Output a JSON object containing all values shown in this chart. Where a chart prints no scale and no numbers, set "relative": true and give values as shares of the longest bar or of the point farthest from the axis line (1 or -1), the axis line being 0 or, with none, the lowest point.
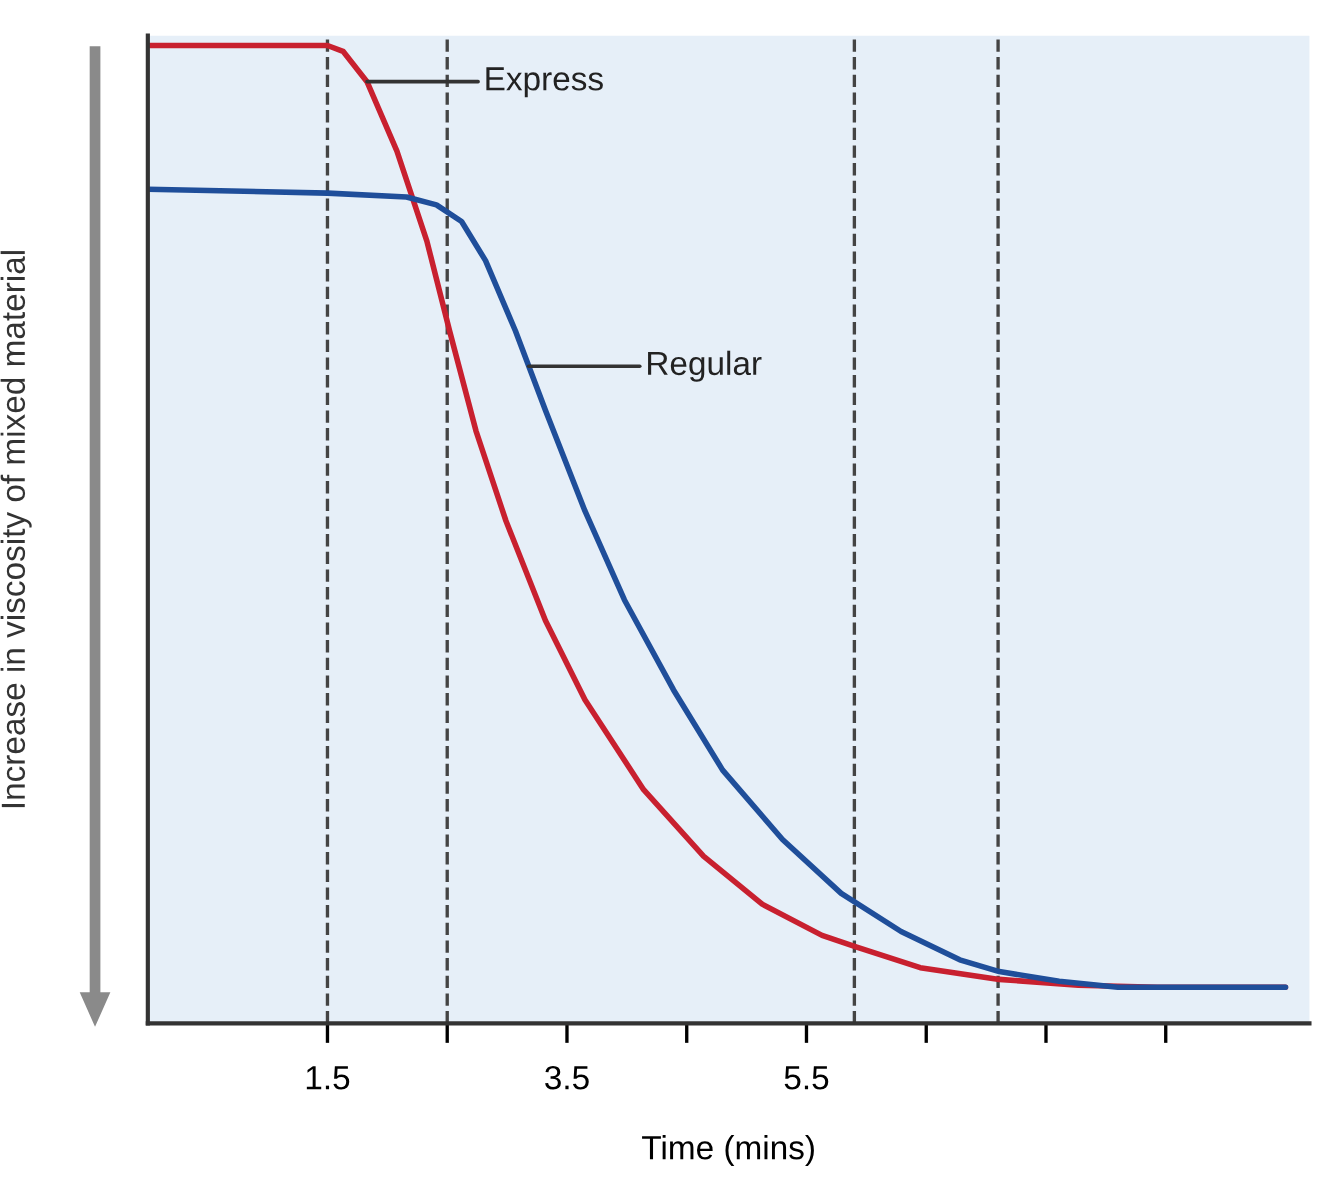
{
  "chart_data": {
    "type": "line",
    "relative": true,
    "xlabel": "Time (mins)",
    "ylabel": "Increase in viscosity of mixed material",
    "xlim": [
      0,
      9.7
    ],
    "xticks": [
      1.5,
      {
        "value": 2.5,
        "label": null
      },
      3.5,
      {
        "value": 4.5,
        "label": null
      },
      5.5,
      {
        "value": 6.5,
        "label": null
      },
      {
        "value": 7.5,
        "label": null
      },
      {
        "value": 8.5,
        "label": null
      }
    ],
    "series": [
      {
        "color": "#c8202f",
        "x": [
          0,
          1.5,
          1.63,
          1.83,
          2.08,
          2.33,
          2.52,
          2.74,
          2.99,
          3.32,
          3.65,
          4.14,
          4.64,
          5.13,
          5.63,
          5.92,
          6.45,
          7.11,
          7.77,
          8.43,
          9.5
        ],
        "values": [
          1.0,
          1.0,
          0.994,
          0.963,
          0.892,
          0.8,
          0.708,
          0.606,
          0.514,
          0.412,
          0.331,
          0.239,
          0.171,
          0.122,
          0.09,
          0.078,
          0.057,
          0.045,
          0.039,
          0.037,
          0.037
        ]
      },
      {
        "color": "#1f4e9a",
        "x": [
          0,
          1.5,
          2.16,
          2.41,
          2.62,
          2.82,
          3.07,
          3.32,
          3.65,
          3.98,
          4.39,
          4.8,
          5.3,
          5.79,
          6.29,
          6.78,
          7.11,
          7.61,
          8.1,
          9.5
        ],
        "values": [
          0.853,
          0.849,
          0.845,
          0.837,
          0.82,
          0.78,
          0.708,
          0.627,
          0.524,
          0.433,
          0.341,
          0.259,
          0.188,
          0.133,
          0.094,
          0.065,
          0.053,
          0.043,
          0.037,
          0.037
        ]
      }
    ],
    "annotations": [
      {
        "text": "Express",
        "x": 1.83,
        "y": 0.963
      },
      {
        "text": "Regular",
        "x": 3.18,
        "y": 0.672
      }
    ],
    "ref_lines": [
      {
        "axis": "x",
        "value": 1.5,
        "color": "#444444",
        "line_style": "dashed"
      },
      {
        "axis": "x",
        "value": 2.5,
        "color": "#444444",
        "line_style": "dashed"
      },
      {
        "axis": "x",
        "value": 5.9,
        "color": "#444444",
        "line_style": "dashed"
      },
      {
        "axis": "x",
        "value": 7.1,
        "color": "#444444",
        "line_style": "dashed"
      }
    ],
    "grid": false,
    "legend": false,
    "marker": "none",
    "line_style": "solid"
  }
}
